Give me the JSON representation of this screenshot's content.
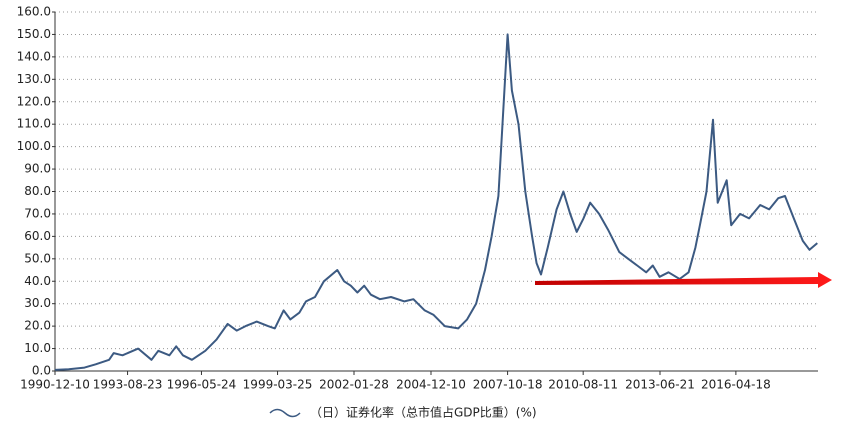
{
  "chart_data": {
    "type": "line",
    "x": [
      "1990-12-10",
      "1991-06-15",
      "1992-01-15",
      "1992-06-15",
      "1992-12-15",
      "1993-02-15",
      "1993-06-15",
      "1994-01-15",
      "1994-07-15",
      "1994-10-15",
      "1995-03-15",
      "1995-06-15",
      "1995-09-15",
      "1996-01-15",
      "1996-04-15",
      "1996-07-15",
      "1996-12-15",
      "1997-05-15",
      "1997-09-15",
      "1998-01-15",
      "1998-06-15",
      "1998-11-15",
      "1999-02-15",
      "1999-06-15",
      "1999-09-15",
      "2000-01-15",
      "2000-04-15",
      "2000-08-15",
      "2000-12-15",
      "2001-06-15",
      "2001-09-15",
      "2001-12-15",
      "2002-03-15",
      "2002-06-15",
      "2002-09-15",
      "2003-01-15",
      "2003-06-15",
      "2003-12-15",
      "2004-04-15",
      "2004-09-15",
      "2005-01-15",
      "2005-06-15",
      "2005-12-15",
      "2006-04-15",
      "2006-08-15",
      "2006-12-15",
      "2007-03-15",
      "2007-06-15",
      "2007-10-18",
      "2007-12-15",
      "2008-03-15",
      "2008-06-15",
      "2008-09-15",
      "2008-11-15",
      "2009-01-15",
      "2009-04-15",
      "2009-08-15",
      "2009-11-15",
      "2010-02-15",
      "2010-05-15",
      "2010-08-15",
      "2010-11-15",
      "2011-03-15",
      "2011-07-15",
      "2011-12-15",
      "2012-04-15",
      "2012-08-15",
      "2012-12-15",
      "2013-03-15",
      "2013-06-15",
      "2013-10-15",
      "2014-03-15",
      "2014-07-15",
      "2014-10-15",
      "2014-12-15",
      "2015-03-15",
      "2015-06-12",
      "2015-08-15",
      "2015-12-15",
      "2016-02-15",
      "2016-06-15",
      "2016-10-15",
      "2017-03-15",
      "2017-07-15",
      "2017-11-15",
      "2018-02-15",
      "2018-06-15",
      "2018-10-15",
      "2019-01-15",
      "2019-05-01"
    ],
    "series": [
      {
        "name": "（日）证券化率（总市值占GDP比重）(%)",
        "color": "#3c5a82",
        "values": [
          0.5,
          0.8,
          1.5,
          3,
          5,
          8,
          7,
          10,
          5,
          9,
          7,
          11,
          7,
          5,
          7,
          9,
          14,
          21,
          18,
          20,
          22,
          20,
          19,
          27,
          23,
          26,
          31,
          33,
          40,
          45,
          40,
          38,
          35,
          38,
          34,
          32,
          33,
          31,
          32,
          27,
          25,
          20,
          19,
          23,
          30,
          45,
          60,
          78,
          150,
          125,
          110,
          80,
          60,
          48,
          43,
          55,
          72,
          80,
          70,
          62,
          68,
          75,
          70,
          63,
          53,
          50,
          47,
          44,
          47,
          42,
          44,
          41,
          44,
          55,
          65,
          80,
          112,
          75,
          85,
          65,
          70,
          68,
          74,
          72,
          77,
          78,
          68,
          58,
          54,
          57
        ]
      }
    ],
    "xlim": [
      "1990-12-10",
      "2019-05-10"
    ],
    "xticks": [
      "1990-12-10",
      "1993-08-23",
      "1996-05-24",
      "1999-03-25",
      "2002-01-28",
      "2004-12-10",
      "2007-10-18",
      "2010-08-11",
      "2013-06-21",
      "2016-04-18"
    ],
    "ylim": [
      0,
      160
    ],
    "yticks": [
      {
        "value": 0,
        "label": "0.0"
      },
      {
        "value": 10,
        "label": "10.0"
      },
      {
        "value": 20,
        "label": "20.0"
      },
      {
        "value": 30,
        "label": "30.0"
      },
      {
        "value": 40,
        "label": "40.0"
      },
      {
        "value": 50,
        "label": "50.0"
      },
      {
        "value": 60,
        "label": "60.0"
      },
      {
        "value": 70,
        "label": "70.0"
      },
      {
        "value": 80,
        "label": "80.0"
      },
      {
        "value": 90,
        "label": "90.0"
      },
      {
        "value": 100,
        "label": "100.0"
      },
      {
        "value": 110,
        "label": "110.0"
      },
      {
        "value": 120,
        "label": "120.0"
      },
      {
        "value": 130,
        "label": "130.0"
      },
      {
        "value": 140,
        "label": "140.0"
      },
      {
        "value": 150,
        "label": "150.0"
      },
      {
        "value": 160,
        "label": "160.0"
      }
    ],
    "grid": true
  }
}
